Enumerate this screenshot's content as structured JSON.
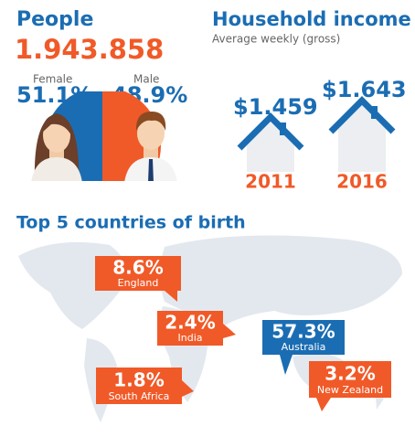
{
  "people": {
    "title": "People",
    "total": "1.943.858",
    "female": {
      "label": "Female",
      "value": "51.1%"
    },
    "male": {
      "label": "Male",
      "value": "48.9%"
    }
  },
  "household_income": {
    "title": "Household income",
    "subtitle": "Average weekly (gross)",
    "items": [
      {
        "value": "$1.459",
        "year": "2011"
      },
      {
        "value": "$1.643",
        "year": "2016"
      }
    ]
  },
  "countries": {
    "title": "Top 5 countries of birth",
    "items": [
      {
        "value": "8.6%",
        "name": "England"
      },
      {
        "value": "2.4%",
        "name": "India"
      },
      {
        "value": "57.3%",
        "name": "Australia"
      },
      {
        "value": "1.8%",
        "name": "South Africa"
      },
      {
        "value": "3.2%",
        "name": "New Zealand"
      }
    ]
  }
}
